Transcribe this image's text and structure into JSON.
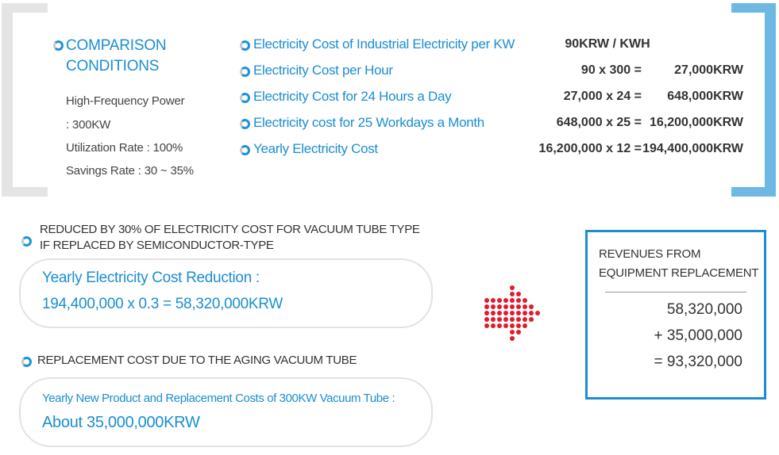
{
  "comparison": {
    "title_line1": "COMPARISON",
    "title_line2": "CONDITIONS",
    "details": [
      "High-Frequency Power",
      ": 300KW",
      "Utilization Rate : 100%",
      "Savings Rate : 30 ~ 35%"
    ]
  },
  "cost_rows": [
    {
      "label": "Electricity Cost of Industrial Electricity per KW",
      "expression": "90KRW / KWH",
      "result": ""
    },
    {
      "label": "Electricity Cost per Hour",
      "expression": "90  x 300 =",
      "result": "27,000KRW"
    },
    {
      "label": "Electricity Cost for 24 Hours a Day",
      "expression": "27,000 x 24 =",
      "result": "648,000KRW"
    },
    {
      "label": "Electricity cost for 25 Workdays a Month",
      "expression": "648,000 x 25 =",
      "result": "16,200,000KRW"
    },
    {
      "label": "Yearly Electricity Cost",
      "expression": "16,200,000 x 12 =",
      "result": "194,400,000KRW"
    }
  ],
  "reduction": {
    "heading_line1": "REDUCED BY 30% OF ELECTRICITY COST FOR VACUUM TUBE TYPE",
    "heading_line2": "IF REPLACED BY SEMICONDUCTOR-TYPE",
    "box_line1": "Yearly Electricity Cost Reduction :",
    "box_line2": "194,400,000 x 0.3 = 58,320,000KRW"
  },
  "replacement": {
    "heading": "REPLACEMENT COST DUE TO THE AGING VACUUM TUBE",
    "box_line1": "Yearly New Product and Replacement Costs of 300KW Vacuum Tube :",
    "box_line2": "About  35,000,000KRW"
  },
  "revenues": {
    "title_line1": "REVENUES FROM",
    "title_line2": "EQUIPMENT REPLACEMENT",
    "lines": [
      "58,320,000",
      "+ 35,000,000",
      "= 93,320,000"
    ]
  },
  "colors": {
    "accent_blue": "#1a8ed1",
    "bracket_gray": "#e4e4e4",
    "bracket_blue": "#6fb8e3",
    "arrow_red": "#e21b2c"
  }
}
